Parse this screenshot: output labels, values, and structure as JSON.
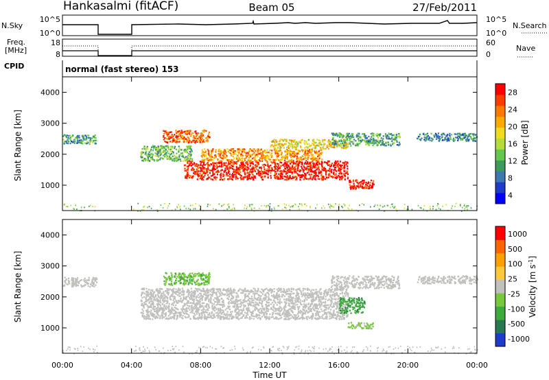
{
  "header": {
    "station": "Hankasalmi (fitACF)",
    "beam": "Beam 05",
    "date": "27/Feb/2011"
  },
  "panels": {
    "nsky": {
      "label": "N.Sky",
      "left_ticks": [
        "10^5",
        "10^0"
      ],
      "right_ticks": [
        "10^5",
        "10^0"
      ],
      "right_label": "N.Search"
    },
    "freq": {
      "label_line1": "Freq.",
      "label_line2": "[MHz]",
      "left_ticks": [
        "18",
        "8"
      ],
      "right_ticks": [
        "60",
        "0"
      ],
      "right_label": "Nave"
    },
    "cpid": {
      "label": "CPID",
      "value": "normal (fast stereo) 153"
    }
  },
  "axes": {
    "ylabel": "Slant Range [km]",
    "yticks": [
      "4000",
      "3000",
      "2000",
      "1000"
    ],
    "xticks": [
      "00:00",
      "04:00",
      "08:00",
      "12:00",
      "16:00",
      "20:00",
      "00:00"
    ],
    "xlabel": "Time UT"
  },
  "chart_data": [
    {
      "type": "heatmap",
      "title": "Power",
      "x_range_hours": [
        0,
        24
      ],
      "y_range_km": [
        180,
        4500
      ],
      "colorbar": {
        "label": "Power [dB]",
        "ticks": [
          "28",
          "24",
          "20",
          "16",
          "12",
          "8",
          "4"
        ],
        "range": [
          0,
          30
        ],
        "colors": [
          "#0000ff",
          "#1e3cc8",
          "#3c78b4",
          "#3c9b5a",
          "#64c850",
          "#b4dc3c",
          "#f0dc1e",
          "#ffaa00",
          "#ff7800",
          "#ff3c00",
          "#ff0000"
        ]
      },
      "echo_regions": [
        {
          "t": [
            0.0,
            2.0
          ],
          "r": [
            2350,
            2650
          ],
          "value": 10
        },
        {
          "t": [
            4.5,
            7.5
          ],
          "r": [
            1800,
            2300
          ],
          "value": 12
        },
        {
          "t": [
            5.8,
            8.5
          ],
          "r": [
            2400,
            2800
          ],
          "value": 24
        },
        {
          "t": [
            7.0,
            16.5
          ],
          "r": [
            1200,
            1800
          ],
          "value": 28
        },
        {
          "t": [
            8.0,
            15.0
          ],
          "r": [
            1800,
            2200
          ],
          "value": 22
        },
        {
          "t": [
            12.0,
            16.5
          ],
          "r": [
            2200,
            2500
          ],
          "value": 18
        },
        {
          "t": [
            16.5,
            18.0
          ],
          "r": [
            900,
            1200
          ],
          "value": 28
        },
        {
          "t": [
            15.5,
            19.5
          ],
          "r": [
            2300,
            2700
          ],
          "value": 10
        },
        {
          "t": [
            20.5,
            24.0
          ],
          "r": [
            2450,
            2700
          ],
          "value": 8
        }
      ]
    },
    {
      "type": "heatmap",
      "title": "Velocity",
      "x_range_hours": [
        0,
        24
      ],
      "y_range_km": [
        180,
        4500
      ],
      "colorbar": {
        "label": "Velocity [m s^-1]",
        "ticks": [
          "1000",
          "500",
          "100",
          "25",
          "-25",
          "-100",
          "-500",
          "-1000"
        ],
        "range": [
          -1000,
          1000
        ],
        "colors": [
          "#1e3cc8",
          "#287850",
          "#3caa3c",
          "#78c83c",
          "#c0c0bc",
          "#ffc83c",
          "#ffa000",
          "#ff6400",
          "#ff0000"
        ]
      },
      "echo_regions": [
        {
          "t": [
            0.0,
            2.0
          ],
          "r": [
            2350,
            2650
          ],
          "value": 0
        },
        {
          "t": [
            4.5,
            16.5
          ],
          "r": [
            1300,
            2300
          ],
          "value": 0
        },
        {
          "t": [
            5.8,
            8.5
          ],
          "r": [
            2400,
            2800
          ],
          "value": -300
        },
        {
          "t": [
            16.0,
            17.5
          ],
          "r": [
            1500,
            2000
          ],
          "value": -500
        },
        {
          "t": [
            16.5,
            18.0
          ],
          "r": [
            1000,
            1200
          ],
          "value": -150
        },
        {
          "t": [
            15.5,
            19.5
          ],
          "r": [
            2300,
            2700
          ],
          "value": 0
        },
        {
          "t": [
            20.5,
            24.0
          ],
          "r": [
            2450,
            2700
          ],
          "value": 0
        }
      ]
    }
  ],
  "colors": {
    "axis": "#000000",
    "ground_scatter": "#c0c0bc",
    "background": "#ffffff"
  }
}
